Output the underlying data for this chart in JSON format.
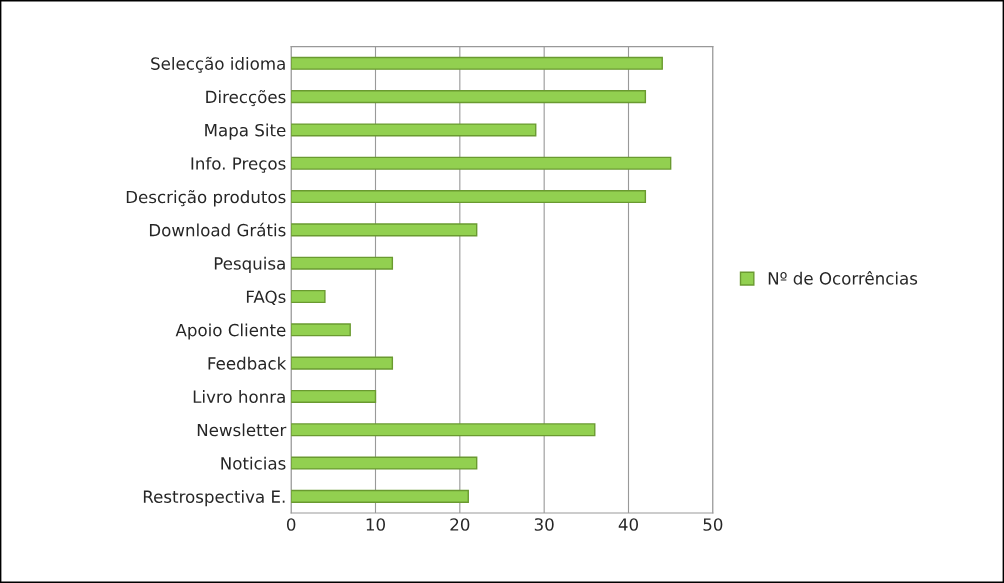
{
  "chart_data": {
    "type": "bar",
    "orientation": "horizontal",
    "categories": [
      "Selecção idioma",
      "Direcções",
      "Mapa Site",
      "Info. Preços",
      "Descrição produtos",
      "Download Grátis",
      "Pesquisa",
      "FAQs",
      "Apoio Cliente",
      "Feedback",
      "Livro honra",
      "Newsletter",
      "Noticias",
      "Restrospectiva E."
    ],
    "series": [
      {
        "name": "Nº de Ocorrências",
        "color": "#92d050",
        "values": [
          44,
          42,
          29,
          45,
          42,
          22,
          12,
          4,
          7,
          12,
          10,
          36,
          22,
          21
        ]
      }
    ],
    "xlim": [
      0,
      50
    ],
    "xticks": [
      0,
      10,
      20,
      30,
      40,
      50
    ],
    "grid": "x",
    "legend": "right"
  }
}
